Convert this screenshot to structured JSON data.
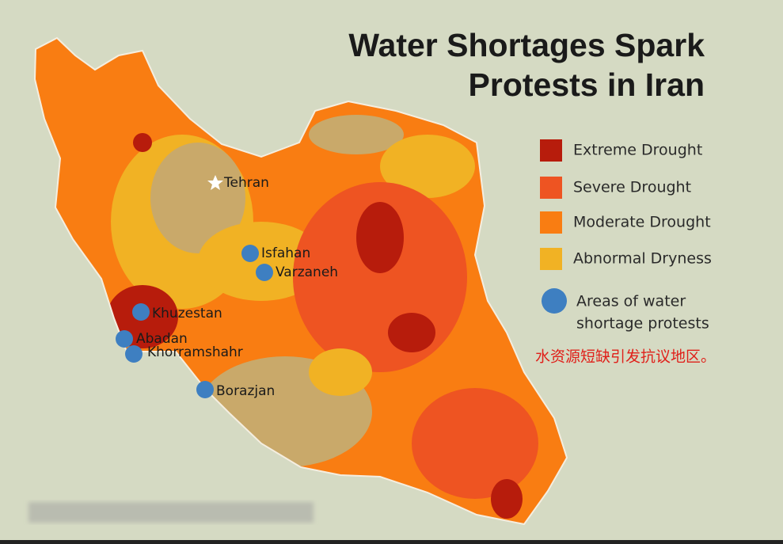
{
  "title": [
    "Water Shortages Spark",
    "Protests in Iran"
  ],
  "legend": [
    {
      "label": "Extreme Drought",
      "color": "#b71c0c"
    },
    {
      "label": "Severe Drought",
      "color": "#ee5422"
    },
    {
      "label": "Moderate Drought",
      "color": "#f97d12"
    },
    {
      "label": "Abnormal Dryness",
      "color": "#f1b224"
    }
  ],
  "protest_legend": {
    "lines": [
      "Areas of water",
      "shortage protests"
    ],
    "color": "#3e7fc1"
  },
  "capital": "Tehran",
  "cities": [
    "Isfahan",
    "Varzaneh",
    "Khuzestan",
    "Abadan",
    "Khorramshahr",
    "Borazjan"
  ],
  "caption": "水资源短缺引发抗议地区。"
}
